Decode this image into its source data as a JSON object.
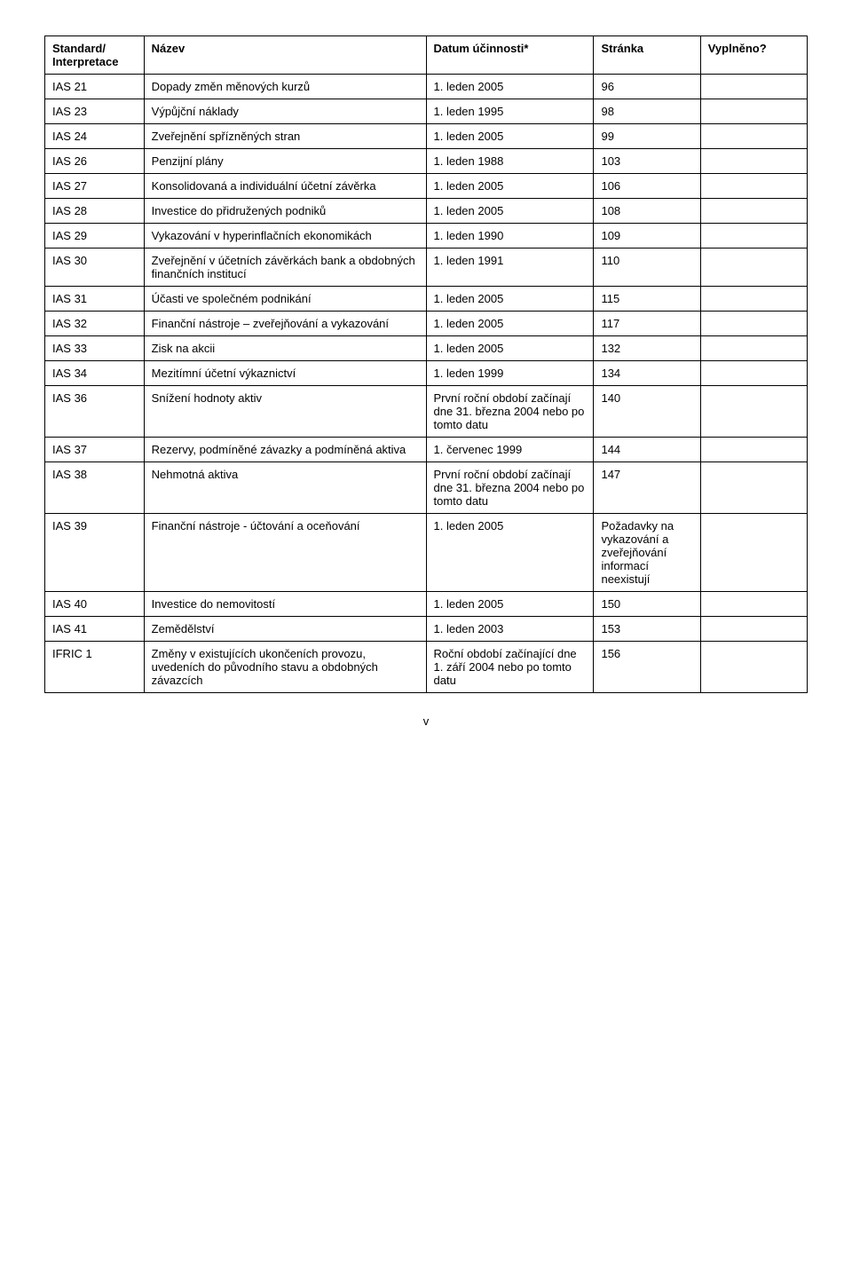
{
  "headers": {
    "standard": "Standard/\nInterpretace",
    "name": "Název",
    "date": "Datum účinnosti*",
    "page": "Stránka",
    "filled": "Vyplněno?"
  },
  "rows": [
    {
      "std": "IAS 21",
      "name": "Dopady změn měnových kurzů",
      "date": "1. leden 2005",
      "page": "96",
      "fill": ""
    },
    {
      "std": "IAS 23",
      "name": "Výpůjční náklady",
      "date": "1. leden 1995",
      "page": "98",
      "fill": ""
    },
    {
      "std": "IAS 24",
      "name": "Zveřejnění spřízněných stran",
      "date": "1. leden 2005",
      "page": "99",
      "fill": ""
    },
    {
      "std": "IAS 26",
      "name": "Penzijní plány",
      "date": "1. leden 1988",
      "page": "103",
      "fill": ""
    },
    {
      "std": "IAS 27",
      "name": "Konsolidovaná a individuální účetní závěrka",
      "date": "1. leden 2005",
      "page": "106",
      "fill": ""
    },
    {
      "std": "IAS 28",
      "name": "Investice do přidružených podniků",
      "date": "1. leden 2005",
      "page": "108",
      "fill": ""
    },
    {
      "std": "IAS 29",
      "name": "Vykazování v hyperinflačních ekonomikách",
      "date": "1. leden 1990",
      "page": "109",
      "fill": ""
    },
    {
      "std": "IAS 30",
      "name": "Zveřejnění v účetních závěrkách bank a obdobných finančních institucí",
      "date": "1. leden 1991",
      "page": "110",
      "fill": ""
    },
    {
      "std": "IAS 31",
      "name": "Účasti ve společném podnikání",
      "date": "1. leden 2005",
      "page": "115",
      "fill": ""
    },
    {
      "std": "IAS 32",
      "name": "Finanční nástroje – zveřejňování a vykazování",
      "date": "1. leden 2005",
      "page": "117",
      "fill": ""
    },
    {
      "std": "IAS 33",
      "name": "Zisk na akcii",
      "date": "1. leden 2005",
      "page": "132",
      "fill": ""
    },
    {
      "std": "IAS 34",
      "name": "Mezitímní účetní výkaznictví",
      "date": "1. leden 1999",
      "page": "134",
      "fill": ""
    },
    {
      "std": "IAS 36",
      "name": "Snížení hodnoty aktiv",
      "date": "První roční období začínají dne 31. března 2004 nebo po tomto datu",
      "page": "140",
      "fill": ""
    },
    {
      "std": "IAS 37",
      "name": "Rezervy, podmíněné závazky a podmíněná aktiva",
      "date": "1. červenec 1999",
      "page": "144",
      "fill": ""
    },
    {
      "std": "IAS 38",
      "name": "Nehmotná aktiva",
      "date": "První roční období začínají dne 31. března 2004 nebo po tomto datu",
      "page": "147",
      "fill": ""
    },
    {
      "std": "IAS 39",
      "name": "Finanční nástroje - účtování a oceňování",
      "date": "1. leden 2005",
      "page": "Požadavky na vykazování a zveřejňování informací neexistují",
      "fill": ""
    },
    {
      "std": "IAS 40",
      "name": "Investice do nemovitostí",
      "date": "1. leden 2005",
      "page": "150",
      "fill": ""
    },
    {
      "std": "IAS 41",
      "name": "Zemědělství",
      "date": "1. leden 2003",
      "page": "153",
      "fill": ""
    },
    {
      "std": "IFRIC 1",
      "name": "Změny v existujících ukončeních provozu, uvedeních do původního stavu a obdobných závazcích",
      "date": "Roční období začínající dne 1. září 2004 nebo po tomto datu",
      "page": "156",
      "fill": ""
    }
  ],
  "footer": {
    "page_number": "v"
  }
}
